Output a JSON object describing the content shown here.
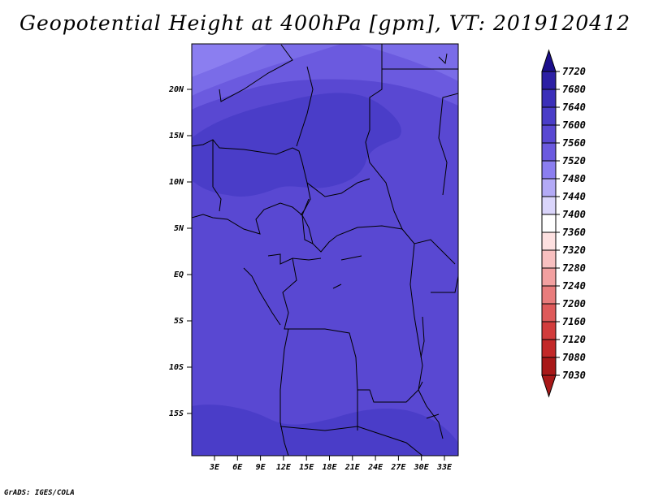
{
  "title": "Geopotential Height at 400hPa [gpm], VT: 2019120412",
  "footer": "GrADS: IGES/COLA",
  "map": {
    "lat_ticks": [
      "20N",
      "15N",
      "10N",
      "5N",
      "EQ",
      "5S",
      "10S",
      "15S"
    ],
    "lon_ticks": [
      "3E",
      "6E",
      "9E",
      "12E",
      "15E",
      "18E",
      "21E",
      "24E",
      "27E",
      "30E",
      "33E"
    ]
  },
  "colorbar": {
    "labels": [
      "7720",
      "7680",
      "7640",
      "7600",
      "7560",
      "7520",
      "7480",
      "7440",
      "7400",
      "7360",
      "7320",
      "7280",
      "7240",
      "7200",
      "7160",
      "7120",
      "7080",
      "7030"
    ],
    "colors": [
      "#1c0f8c",
      "#2c1fa4",
      "#3b2fb9",
      "#4a3dc8",
      "#5948d2",
      "#6b5adf",
      "#8b7ef0",
      "#b3aaf6",
      "#dad5fb",
      "#ffffff",
      "#fde0e0",
      "#f8c0c0",
      "#f2a0a0",
      "#e87c7c",
      "#de5a5a",
      "#d23c3c",
      "#c22828",
      "#a81818"
    ],
    "colors_note": ""
  },
  "colors": {
    "fill_high_corner": "#8b7ef0",
    "fill_light": "#6b5adf",
    "fill_mid": "#5948d2",
    "fill_dark": "#4a3dc8"
  }
}
